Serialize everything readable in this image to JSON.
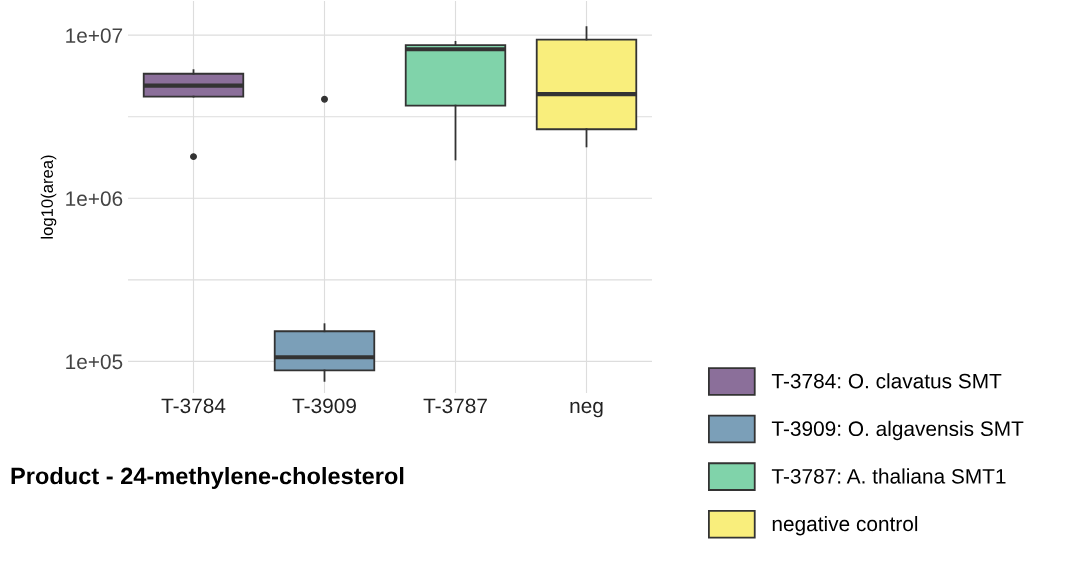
{
  "chart_data": [
    {
      "type": "box",
      "ylabel": "log10(area)",
      "log": "y",
      "categories": [
        "T-3784",
        "T-3909",
        "T-3787",
        "neg"
      ],
      "series": [
        {
          "name": "T-3784: O. clavatus SMT",
          "color": "#8b6f9a",
          "boxes": [
            {
              "low": 4200000,
              "q1": 4200000,
              "median": 4900000,
              "q3": 5800000,
              "high": 6100000,
              "outliers": [
                1800000
              ]
            },
            null,
            null,
            null
          ]
        },
        {
          "name": "T-3909: O. algavensis SMT",
          "color": "#7b9fb8",
          "boxes": [
            null,
            {
              "low": 76000,
              "q1": 88000,
              "median": 106000,
              "q3": 153000,
              "high": 169000,
              "outliers": [
                4050000
              ]
            },
            null,
            null
          ]
        },
        {
          "name": "T-3787: A. thaliana SMT1",
          "color": "#80d3aa",
          "boxes": [
            null,
            null,
            {
              "low": 1730000,
              "q1": 3700000,
              "median": 8200000,
              "q3": 8700000,
              "high": 9100000
            },
            null
          ]
        },
        {
          "name": "negative control",
          "color": "#f9ee7c",
          "boxes": [
            null,
            null,
            null,
            {
              "low": 2080000,
              "q1": 2650000,
              "median": 4350000,
              "q3": 9400000,
              "high": 11200000
            }
          ]
        }
      ],
      "ylim": [
        64000,
        16200000
      ],
      "yticks": [
        {
          "value": 100000,
          "label": "1e+05"
        },
        {
          "value": 316228,
          "label": null
        },
        {
          "value": 1000000,
          "label": "1e+06"
        },
        {
          "value": 3162278,
          "label": null
        },
        {
          "value": 10000000,
          "label": "1e+07"
        }
      ],
      "grid": true,
      "legend": "right"
    },
    {
      "type": "other",
      "title": "Product - 24-methylene-cholesterol"
    }
  ]
}
